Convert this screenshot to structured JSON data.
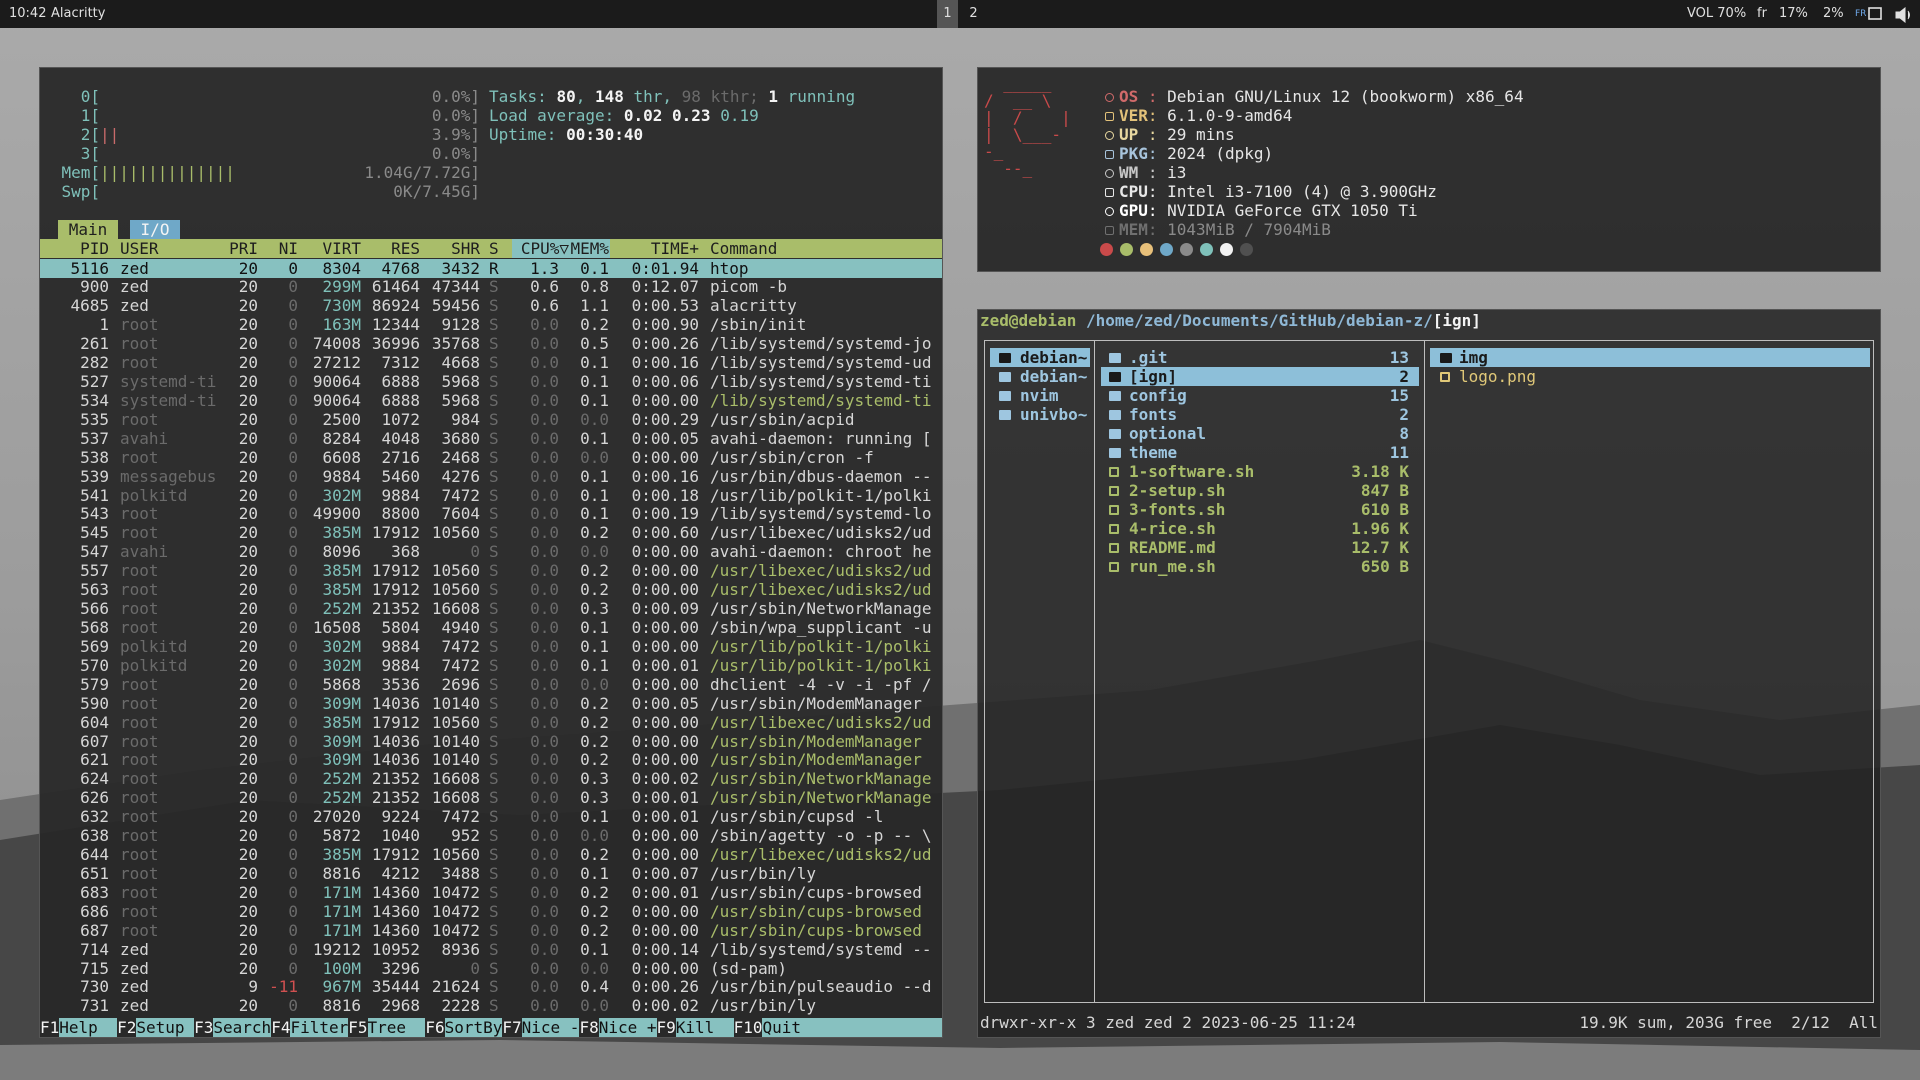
{
  "topbar": {
    "clock": "10:42",
    "title": "Alacritty",
    "workspaces": [
      "1",
      "2"
    ],
    "status": [
      "VOL 70%",
      "fr",
      "17%",
      "2%"
    ],
    "layout": "FR"
  },
  "htop": {
    "meters": [
      {
        "label": "0[",
        "value": "0.0%]"
      },
      {
        "label": "1[",
        "value": "0.0%]"
      },
      {
        "label": "2[",
        "bar": "||",
        "value": "3.9%]"
      },
      {
        "label": "3[",
        "value": "0.0%]"
      },
      {
        "label": "Mem[",
        "bar": "||||||||||||||",
        "value": "1.04G/7.72G]"
      },
      {
        "label": "Swp[",
        "value": "0K/7.45G]"
      }
    ],
    "info": [
      [
        [
          "Tasks: ",
          "c"
        ],
        [
          "80",
          "w"
        ],
        [
          ", ",
          "c"
        ],
        [
          "148",
          "w"
        ],
        [
          " thr, ",
          "c"
        ],
        [
          "98",
          "d"
        ],
        [
          " kthr; ",
          "d"
        ],
        [
          "1",
          "w"
        ],
        [
          " running",
          "c"
        ]
      ],
      [
        [
          "Load average: ",
          "c"
        ],
        [
          "0.02 0.23",
          "w"
        ],
        [
          " 0.19",
          "c"
        ]
      ],
      [
        [
          "Uptime: ",
          "c"
        ],
        [
          "00:30:40",
          "w"
        ]
      ]
    ],
    "tabs": [
      "Main",
      "I/O"
    ],
    "columns": [
      "PID",
      "USER",
      "PRI",
      "NI",
      "VIRT",
      "RES",
      "SHR",
      "S",
      "CPU%▽",
      "MEM%",
      "TIME+",
      "Command"
    ],
    "sort_column": 8,
    "selected_row": 0,
    "thread_rows": [
      7,
      16,
      17,
      20,
      21,
      24,
      25,
      26,
      27,
      28,
      31,
      34,
      35
    ],
    "rows": [
      [
        "5116",
        "zed",
        "20",
        "0",
        "8304",
        "4768",
        "3432",
        "R",
        "1.3",
        "0.1",
        "0:01.94",
        "htop"
      ],
      [
        "900",
        "zed",
        "20",
        "0",
        "299M",
        "61464",
        "47344",
        "S",
        "0.6",
        "0.8",
        "0:12.07",
        "picom -b"
      ],
      [
        "4685",
        "zed",
        "20",
        "0",
        "730M",
        "86924",
        "59456",
        "S",
        "0.6",
        "1.1",
        "0:00.53",
        "alacritty"
      ],
      [
        "1",
        "root",
        "20",
        "0",
        "163M",
        "12344",
        "9128",
        "S",
        "0.0",
        "0.2",
        "0:00.90",
        "/sbin/init"
      ],
      [
        "261",
        "root",
        "20",
        "0",
        "74008",
        "36996",
        "35768",
        "S",
        "0.0",
        "0.5",
        "0:00.26",
        "/lib/systemd/systemd-jo"
      ],
      [
        "282",
        "root",
        "20",
        "0",
        "27212",
        "7312",
        "4668",
        "S",
        "0.0",
        "0.1",
        "0:00.16",
        "/lib/systemd/systemd-ud"
      ],
      [
        "527",
        "systemd-ti",
        "20",
        "0",
        "90064",
        "6888",
        "5968",
        "S",
        "0.0",
        "0.1",
        "0:00.06",
        "/lib/systemd/systemd-ti"
      ],
      [
        "534",
        "systemd-ti",
        "20",
        "0",
        "90064",
        "6888",
        "5968",
        "S",
        "0.0",
        "0.1",
        "0:00.00",
        "/lib/systemd/systemd-ti"
      ],
      [
        "535",
        "root",
        "20",
        "0",
        "2500",
        "1072",
        "984",
        "S",
        "0.0",
        "0.0",
        "0:00.29",
        "/usr/sbin/acpid"
      ],
      [
        "537",
        "avahi",
        "20",
        "0",
        "8284",
        "4048",
        "3680",
        "S",
        "0.0",
        "0.1",
        "0:00.05",
        "avahi-daemon: running ["
      ],
      [
        "538",
        "root",
        "20",
        "0",
        "6608",
        "2716",
        "2468",
        "S",
        "0.0",
        "0.0",
        "0:00.00",
        "/usr/sbin/cron -f"
      ],
      [
        "539",
        "messagebus",
        "20",
        "0",
        "9884",
        "5460",
        "4276",
        "S",
        "0.0",
        "0.1",
        "0:00.16",
        "/usr/bin/dbus-daemon --"
      ],
      [
        "541",
        "polkitd",
        "20",
        "0",
        "302M",
        "9884",
        "7472",
        "S",
        "0.0",
        "0.1",
        "0:00.18",
        "/usr/lib/polkit-1/polki"
      ],
      [
        "543",
        "root",
        "20",
        "0",
        "49900",
        "8800",
        "7604",
        "S",
        "0.0",
        "0.1",
        "0:00.19",
        "/lib/systemd/systemd-lo"
      ],
      [
        "545",
        "root",
        "20",
        "0",
        "385M",
        "17912",
        "10560",
        "S",
        "0.0",
        "0.2",
        "0:00.60",
        "/usr/libexec/udisks2/ud"
      ],
      [
        "547",
        "avahi",
        "20",
        "0",
        "8096",
        "368",
        "0",
        "S",
        "0.0",
        "0.0",
        "0:00.00",
        "avahi-daemon: chroot he"
      ],
      [
        "557",
        "root",
        "20",
        "0",
        "385M",
        "17912",
        "10560",
        "S",
        "0.0",
        "0.2",
        "0:00.00",
        "/usr/libexec/udisks2/ud"
      ],
      [
        "563",
        "root",
        "20",
        "0",
        "385M",
        "17912",
        "10560",
        "S",
        "0.0",
        "0.2",
        "0:00.00",
        "/usr/libexec/udisks2/ud"
      ],
      [
        "566",
        "root",
        "20",
        "0",
        "252M",
        "21352",
        "16608",
        "S",
        "0.0",
        "0.3",
        "0:00.09",
        "/usr/sbin/NetworkManage"
      ],
      [
        "568",
        "root",
        "20",
        "0",
        "16508",
        "5804",
        "4940",
        "S",
        "0.0",
        "0.1",
        "0:00.00",
        "/sbin/wpa_supplicant -u"
      ],
      [
        "569",
        "polkitd",
        "20",
        "0",
        "302M",
        "9884",
        "7472",
        "S",
        "0.0",
        "0.1",
        "0:00.00",
        "/usr/lib/polkit-1/polki"
      ],
      [
        "570",
        "polkitd",
        "20",
        "0",
        "302M",
        "9884",
        "7472",
        "S",
        "0.0",
        "0.1",
        "0:00.01",
        "/usr/lib/polkit-1/polki"
      ],
      [
        "579",
        "root",
        "20",
        "0",
        "5868",
        "3536",
        "2696",
        "S",
        "0.0",
        "0.0",
        "0:00.00",
        "dhclient -4 -v -i -pf /"
      ],
      [
        "590",
        "root",
        "20",
        "0",
        "309M",
        "14036",
        "10140",
        "S",
        "0.0",
        "0.2",
        "0:00.05",
        "/usr/sbin/ModemManager"
      ],
      [
        "604",
        "root",
        "20",
        "0",
        "385M",
        "17912",
        "10560",
        "S",
        "0.0",
        "0.2",
        "0:00.00",
        "/usr/libexec/udisks2/ud"
      ],
      [
        "607",
        "root",
        "20",
        "0",
        "309M",
        "14036",
        "10140",
        "S",
        "0.0",
        "0.2",
        "0:00.00",
        "/usr/sbin/ModemManager"
      ],
      [
        "621",
        "root",
        "20",
        "0",
        "309M",
        "14036",
        "10140",
        "S",
        "0.0",
        "0.2",
        "0:00.00",
        "/usr/sbin/ModemManager"
      ],
      [
        "624",
        "root",
        "20",
        "0",
        "252M",
        "21352",
        "16608",
        "S",
        "0.0",
        "0.3",
        "0:00.02",
        "/usr/sbin/NetworkManage"
      ],
      [
        "626",
        "root",
        "20",
        "0",
        "252M",
        "21352",
        "16608",
        "S",
        "0.0",
        "0.3",
        "0:00.01",
        "/usr/sbin/NetworkManage"
      ],
      [
        "632",
        "root",
        "20",
        "0",
        "27020",
        "9224",
        "7472",
        "S",
        "0.0",
        "0.1",
        "0:00.01",
        "/usr/sbin/cupsd -l"
      ],
      [
        "638",
        "root",
        "20",
        "0",
        "5872",
        "1040",
        "952",
        "S",
        "0.0",
        "0.0",
        "0:00.00",
        "/sbin/agetty -o -p -- \\"
      ],
      [
        "644",
        "root",
        "20",
        "0",
        "385M",
        "17912",
        "10560",
        "S",
        "0.0",
        "0.2",
        "0:00.00",
        "/usr/libexec/udisks2/ud"
      ],
      [
        "651",
        "root",
        "20",
        "0",
        "8816",
        "4212",
        "3488",
        "S",
        "0.0",
        "0.1",
        "0:00.07",
        "/usr/bin/ly"
      ],
      [
        "683",
        "root",
        "20",
        "0",
        "171M",
        "14360",
        "10472",
        "S",
        "0.0",
        "0.2",
        "0:00.01",
        "/usr/sbin/cups-browsed"
      ],
      [
        "686",
        "root",
        "20",
        "0",
        "171M",
        "14360",
        "10472",
        "S",
        "0.0",
        "0.2",
        "0:00.00",
        "/usr/sbin/cups-browsed"
      ],
      [
        "687",
        "root",
        "20",
        "0",
        "171M",
        "14360",
        "10472",
        "S",
        "0.0",
        "0.2",
        "0:00.00",
        "/usr/sbin/cups-browsed"
      ],
      [
        "714",
        "zed",
        "20",
        "0",
        "19212",
        "10952",
        "8936",
        "S",
        "0.0",
        "0.1",
        "0:00.14",
        "/lib/systemd/systemd --"
      ],
      [
        "715",
        "zed",
        "20",
        "0",
        "100M",
        "3296",
        "0",
        "S",
        "0.0",
        "0.0",
        "0:00.00",
        "(sd-pam)"
      ],
      [
        "730",
        "zed",
        "9",
        "-11",
        "967M",
        "35444",
        "21624",
        "S",
        "0.0",
        "0.4",
        "0:00.26",
        "/usr/bin/pulseaudio --d"
      ],
      [
        "731",
        "zed",
        "20",
        "0",
        "8816",
        "2968",
        "2228",
        "S",
        "0.0",
        "0.0",
        "0:00.02",
        "/usr/bin/ly"
      ]
    ],
    "footer": [
      [
        "F1",
        "Help"
      ],
      [
        "F2",
        "Setup"
      ],
      [
        "F3",
        "Search"
      ],
      [
        "F4",
        "Filter"
      ],
      [
        "F5",
        "Tree"
      ],
      [
        "F6",
        "SortBy"
      ],
      [
        "F7",
        "Nice -"
      ],
      [
        "F8",
        "Nice +"
      ],
      [
        "F9",
        "Kill"
      ],
      [
        "F10",
        "Quit"
      ]
    ]
  },
  "neofetch": {
    "logo": [
      "  _____",
      "/  __ \\",
      "|  /    |",
      "|  \\___-",
      "-_",
      "  --_"
    ],
    "separator": ":",
    "fields": [
      {
        "label": "OS",
        "value": "Debian GNU/Linux 12 (bookworm) x86_64",
        "color": "#d06a6a"
      },
      {
        "label": "VER",
        "value": "6.1.0-9-amd64",
        "color": "#e3c27a"
      },
      {
        "label": "UP",
        "value": "29 mins",
        "color": "#e8d8a0"
      },
      {
        "label": "PKG",
        "value": "2024 (dpkg)",
        "color": "#a8c4dc"
      },
      {
        "label": "WM",
        "value": "i3",
        "color": "#c8c8c8"
      },
      {
        "label": "CPU",
        "value": "Intel i3-7100 (4) @ 3.900GHz",
        "color": "#e8e8e8"
      },
      {
        "label": "GPU",
        "value": "NVIDIA GeForce GTX 1050 Ti",
        "color": "#ffffff"
      },
      {
        "label": "MEM",
        "value": "1043MiB / 7904MiB",
        "color": "#707070"
      }
    ],
    "palette": [
      "#c94a4a",
      "#a9bd6a",
      "#e8c07a",
      "#6fa8c8",
      "#8a8a8a",
      "#7fc1ba",
      "#f2f2f2",
      "#505050"
    ]
  },
  "ranger": {
    "user": "zed@debian",
    "path": "/home/zed/Documents/GitHub/debian-z/",
    "current": "[ign]",
    "parent": [
      "debian~",
      "debian~",
      "nvim",
      "univbo~"
    ],
    "parent_selected": 0,
    "files": [
      {
        "name": ".git",
        "size": "13",
        "type": "dir"
      },
      {
        "name": "[ign]",
        "size": "2",
        "type": "dir"
      },
      {
        "name": "config",
        "size": "15",
        "type": "dir"
      },
      {
        "name": "fonts",
        "size": "2",
        "type": "dir"
      },
      {
        "name": "optional",
        "size": "8",
        "type": "dir"
      },
      {
        "name": "theme",
        "size": "11",
        "type": "dir"
      },
      {
        "name": "1-software.sh",
        "size": "3.18 K",
        "type": "exec"
      },
      {
        "name": "2-setup.sh",
        "size": "847 B",
        "type": "exec"
      },
      {
        "name": "3-fonts.sh",
        "size": "610 B",
        "type": "exec"
      },
      {
        "name": "4-rice.sh",
        "size": "1.96 K",
        "type": "exec"
      },
      {
        "name": "README.md",
        "size": "12.7 K",
        "type": "doc"
      },
      {
        "name": "run_me.sh",
        "size": "650 B",
        "type": "exec"
      }
    ],
    "files_selected": 1,
    "preview": [
      {
        "name": "img",
        "type": "dir"
      },
      {
        "name": "logo.png",
        "type": "image"
      }
    ],
    "preview_selected": 0,
    "status_left": "drwxr-xr-x 3 zed zed 2 2023-06-25 11:24",
    "status_right": "19.9K sum, 203G free  2/12  All"
  }
}
